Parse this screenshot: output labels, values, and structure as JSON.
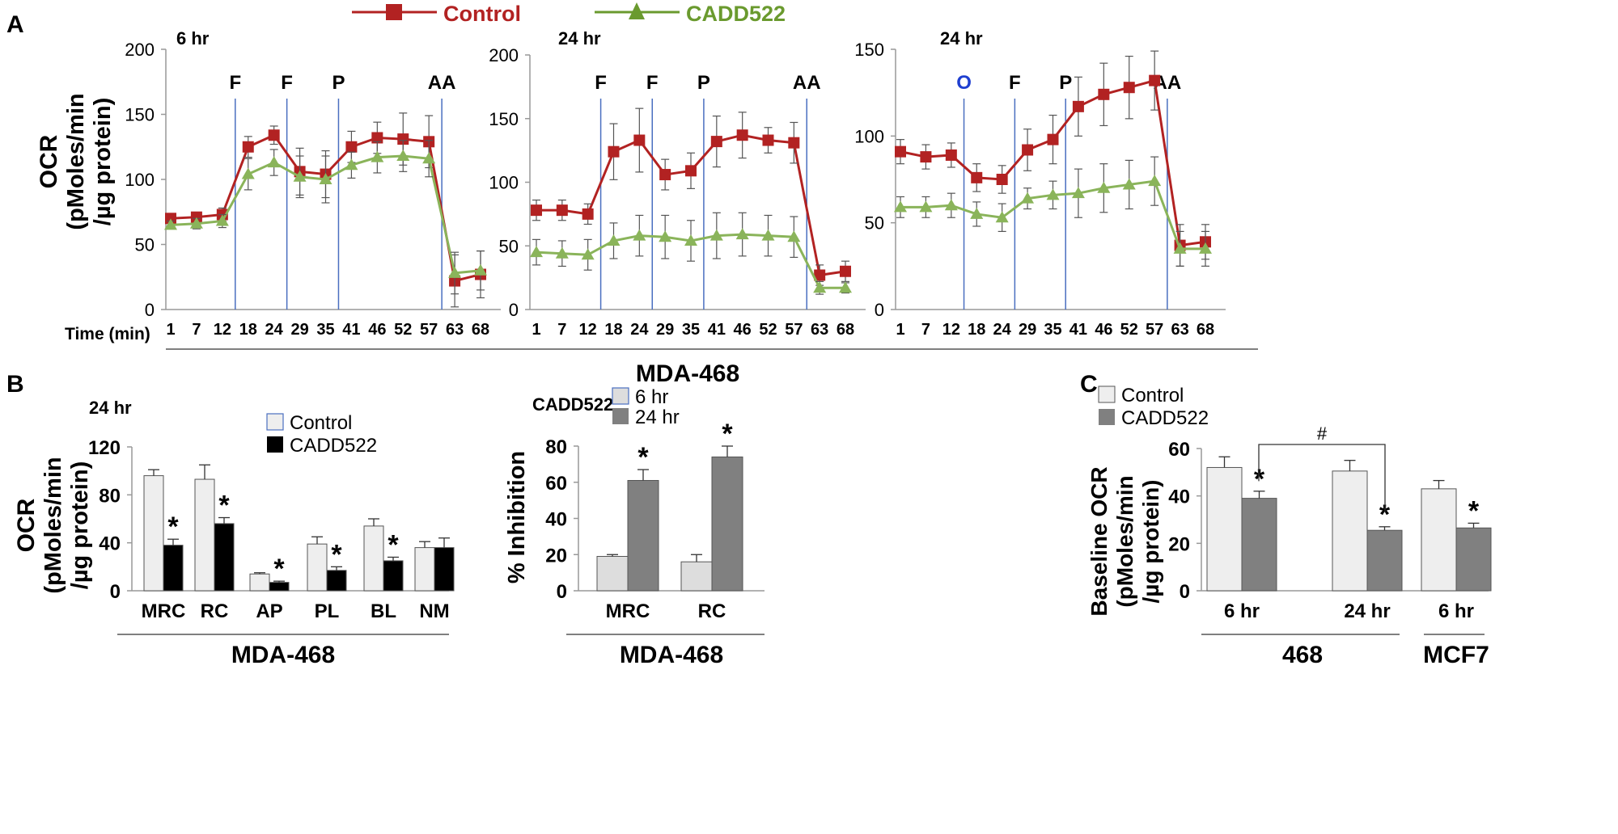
{
  "figure": {
    "panel_labels": [
      "A",
      "B",
      "C"
    ],
    "top_legend": [
      {
        "label": "Control",
        "color": "#b22222",
        "marker": "square"
      },
      {
        "label": "CADD522",
        "color": "#6a9a2e",
        "marker": "triangle"
      }
    ],
    "group_label_A": "MDA-468",
    "time_axis_label": "Time (min)"
  },
  "chart_data": [
    {
      "id": "A1",
      "type": "line",
      "annotation": "6 hr",
      "ylabel": "OCR (pMoles/min /µg protein)",
      "xlabel": "Time (min)",
      "x": [
        "1",
        "7",
        "12",
        "18",
        "24",
        "29",
        "35",
        "41",
        "46",
        "52",
        "57",
        "63",
        "68"
      ],
      "ylim": [
        0,
        200
      ],
      "yticks": [
        0,
        50,
        100,
        150,
        200
      ],
      "injections": [
        {
          "label": "F",
          "after_index": 2,
          "color": "#000000"
        },
        {
          "label": "F",
          "after_index": 4,
          "color": "#000000"
        },
        {
          "label": "P",
          "after_index": 6,
          "color": "#000000"
        },
        {
          "label": "AA",
          "after_index": 10,
          "color": "#000000"
        }
      ],
      "series": [
        {
          "name": "Control",
          "color": "#b22222",
          "marker": "square",
          "values": [
            70,
            71,
            73,
            125,
            134,
            106,
            104,
            125,
            132,
            131,
            129,
            22,
            27
          ],
          "errors": [
            3,
            3,
            5,
            8,
            7,
            18,
            18,
            12,
            12,
            20,
            20,
            20,
            18
          ]
        },
        {
          "name": "CADD522",
          "color": "#8ab45a",
          "marker": "triangle",
          "values": [
            65,
            66,
            68,
            104,
            113,
            102,
            100,
            111,
            117,
            118,
            116,
            28,
            30
          ],
          "errors": [
            3,
            4,
            5,
            12,
            10,
            16,
            18,
            10,
            12,
            12,
            14,
            16,
            15
          ]
        }
      ]
    },
    {
      "id": "A2",
      "type": "line",
      "annotation": "24 hr",
      "x": [
        "1",
        "7",
        "12",
        "18",
        "24",
        "29",
        "35",
        "41",
        "46",
        "52",
        "57",
        "63",
        "68"
      ],
      "ylim": [
        0,
        200
      ],
      "yticks": [
        0,
        50,
        100,
        150,
        200
      ],
      "injections": [
        {
          "label": "F",
          "after_index": 2,
          "color": "#000000"
        },
        {
          "label": "F",
          "after_index": 4,
          "color": "#000000"
        },
        {
          "label": "P",
          "after_index": 6,
          "color": "#000000"
        },
        {
          "label": "AA",
          "after_index": 10,
          "color": "#000000"
        }
      ],
      "series": [
        {
          "name": "Control",
          "color": "#b22222",
          "marker": "square",
          "values": [
            78,
            78,
            75,
            124,
            133,
            106,
            109,
            132,
            137,
            133,
            131,
            27,
            30
          ],
          "errors": [
            8,
            8,
            8,
            22,
            25,
            12,
            14,
            20,
            18,
            10,
            16,
            8,
            8
          ]
        },
        {
          "name": "CADD522",
          "color": "#8ab45a",
          "marker": "triangle",
          "values": [
            45,
            44,
            43,
            54,
            58,
            57,
            54,
            58,
            59,
            58,
            57,
            17,
            17
          ],
          "errors": [
            10,
            10,
            12,
            14,
            16,
            17,
            16,
            18,
            17,
            16,
            16,
            5,
            4
          ]
        }
      ]
    },
    {
      "id": "A3",
      "type": "line",
      "annotation": "24 hr",
      "x": [
        "1",
        "7",
        "12",
        "18",
        "24",
        "29",
        "35",
        "41",
        "46",
        "52",
        "57",
        "63",
        "68"
      ],
      "ylim": [
        0,
        150
      ],
      "yticks": [
        0,
        50,
        100,
        150
      ],
      "injections": [
        {
          "label": "O",
          "after_index": 2,
          "color": "#1f3fd0"
        },
        {
          "label": "F",
          "after_index": 4,
          "color": "#000000"
        },
        {
          "label": "P",
          "after_index": 6,
          "color": "#000000"
        },
        {
          "label": "AA",
          "after_index": 10,
          "color": "#000000"
        }
      ],
      "series": [
        {
          "name": "Control",
          "color": "#b22222",
          "marker": "square",
          "values": [
            91,
            88,
            89,
            76,
            75,
            92,
            98,
            117,
            124,
            128,
            132,
            37,
            39
          ],
          "errors": [
            7,
            7,
            7,
            8,
            8,
            12,
            14,
            17,
            18,
            18,
            17,
            12,
            10
          ]
        },
        {
          "name": "CADD522",
          "color": "#8ab45a",
          "marker": "triangle",
          "values": [
            59,
            59,
            60,
            55,
            53,
            64,
            66,
            67,
            70,
            72,
            74,
            35,
            35
          ],
          "errors": [
            6,
            6,
            7,
            7,
            8,
            6,
            8,
            14,
            14,
            14,
            14,
            10,
            10
          ]
        }
      ]
    },
    {
      "id": "B1",
      "type": "bar",
      "annotation": "24 hr",
      "ylabel": "OCR (pMoles/min /µg protein)",
      "group_label": "MDA-468",
      "categories": [
        "MRC",
        "RC",
        "AP",
        "PL",
        "BL",
        "NM"
      ],
      "ylim": [
        0,
        120
      ],
      "yticks": [
        0,
        40,
        80,
        120
      ],
      "legend": "top-right",
      "series": [
        {
          "name": "Control",
          "color": "#eeeeee",
          "values": [
            96,
            93,
            14,
            39,
            54,
            36
          ],
          "errors": [
            5,
            12,
            1,
            6,
            6,
            5
          ]
        },
        {
          "name": "CADD522",
          "color": "#000000",
          "values": [
            38,
            56,
            7,
            17,
            25,
            36
          ],
          "errors": [
            5,
            5,
            1,
            3,
            3,
            8
          ]
        }
      ],
      "significance": [
        [
          false,
          true
        ],
        [
          false,
          true
        ],
        [
          false,
          true
        ],
        [
          false,
          true
        ],
        [
          false,
          true
        ],
        [
          false,
          false
        ]
      ]
    },
    {
      "id": "B2",
      "type": "bar",
      "annotation": "CADD522",
      "ylabel": "% Inhibition",
      "group_label": "MDA-468",
      "categories": [
        "MRC",
        "RC"
      ],
      "ylim": [
        0,
        80
      ],
      "yticks": [
        0,
        20,
        40,
        60,
        80
      ],
      "legend": "top",
      "series": [
        {
          "name": "6 hr",
          "color": "#dddddd",
          "values": [
            19,
            16
          ],
          "errors": [
            1,
            4
          ]
        },
        {
          "name": "24 hr",
          "color": "#808080",
          "values": [
            61,
            74
          ],
          "errors": [
            6,
            6
          ]
        }
      ],
      "significance": [
        [
          false,
          true
        ],
        [
          false,
          true
        ]
      ]
    },
    {
      "id": "C",
      "type": "bar",
      "ylabel": "Baseline OCR (pMoles/min /µg protein)",
      "categories": [
        "6 hr",
        "24 hr",
        "6 hr"
      ],
      "category_groups": [
        {
          "label": "468",
          "from": 0,
          "to": 1
        },
        {
          "label": "MCF7",
          "from": 2,
          "to": 2
        }
      ],
      "ylim": [
        0,
        60
      ],
      "yticks": [
        0,
        20,
        40,
        60
      ],
      "legend": "top-left",
      "series": [
        {
          "name": "Control",
          "color": "#eeeeee",
          "values": [
            52,
            50.5,
            43
          ],
          "errors": [
            4.5,
            4.5,
            3.5
          ]
        },
        {
          "name": "CADD522",
          "color": "#808080",
          "values": [
            39,
            25.5,
            26.5
          ],
          "errors": [
            3,
            1.5,
            2
          ]
        }
      ],
      "significance": [
        [
          false,
          true
        ],
        [
          false,
          true
        ],
        [
          false,
          true
        ]
      ],
      "bracket": {
        "label": "#",
        "from_category": 0,
        "to_category": 1
      }
    }
  ]
}
